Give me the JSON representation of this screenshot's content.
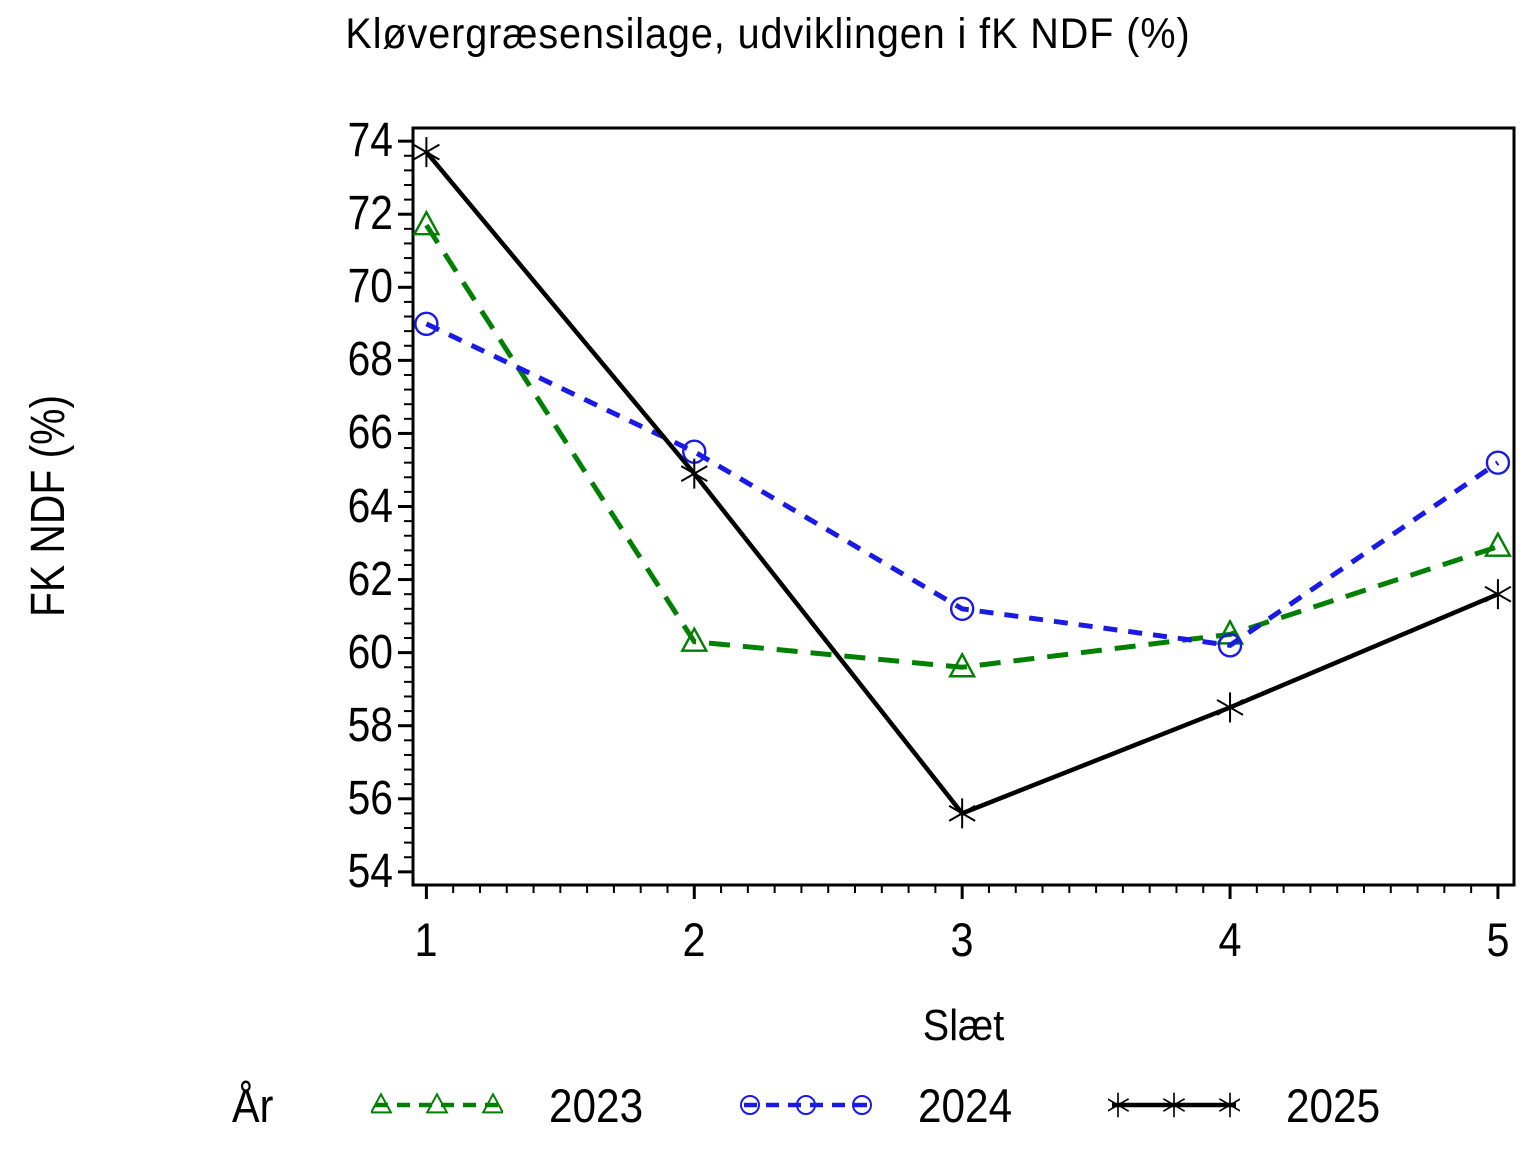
{
  "chart_data": {
    "type": "line",
    "title": "Kløvergræsensilage, udviklingen i fK NDF (%)",
    "xlabel": "Slæt",
    "ylabel": "FK NDF (%)",
    "legend_label": "År",
    "legend_position": "bottom",
    "grid": false,
    "x": [
      1,
      2,
      3,
      4,
      5
    ],
    "x_ticks": [
      1,
      2,
      3,
      4,
      5
    ],
    "y_ticks": [
      54,
      56,
      58,
      60,
      62,
      64,
      66,
      68,
      70,
      72,
      74
    ],
    "x_minor_step": 0.1,
    "y_minor_step": 0.4,
    "xlim": [
      0.95,
      5.06
    ],
    "ylim": [
      53.64,
      74.36
    ],
    "series": [
      {
        "name": "2023",
        "color": "#008000",
        "line_style": "dashed",
        "dash": "21 13",
        "width": 5,
        "marker": "triangle",
        "values": [
          71.7,
          60.3,
          59.6,
          60.5,
          62.9
        ]
      },
      {
        "name": "2024",
        "color": "#1A1AE6",
        "line_style": "dashed",
        "dash": "14 11",
        "width": 5,
        "marker": "circle",
        "values": [
          69.0,
          65.5,
          61.2,
          60.2,
          65.2
        ]
      },
      {
        "name": "2025",
        "color": "#000000",
        "line_style": "solid",
        "dash": "",
        "width": 4.5,
        "marker": "asterisk",
        "values": [
          73.7,
          64.9,
          55.6,
          58.5,
          61.6
        ]
      }
    ]
  }
}
